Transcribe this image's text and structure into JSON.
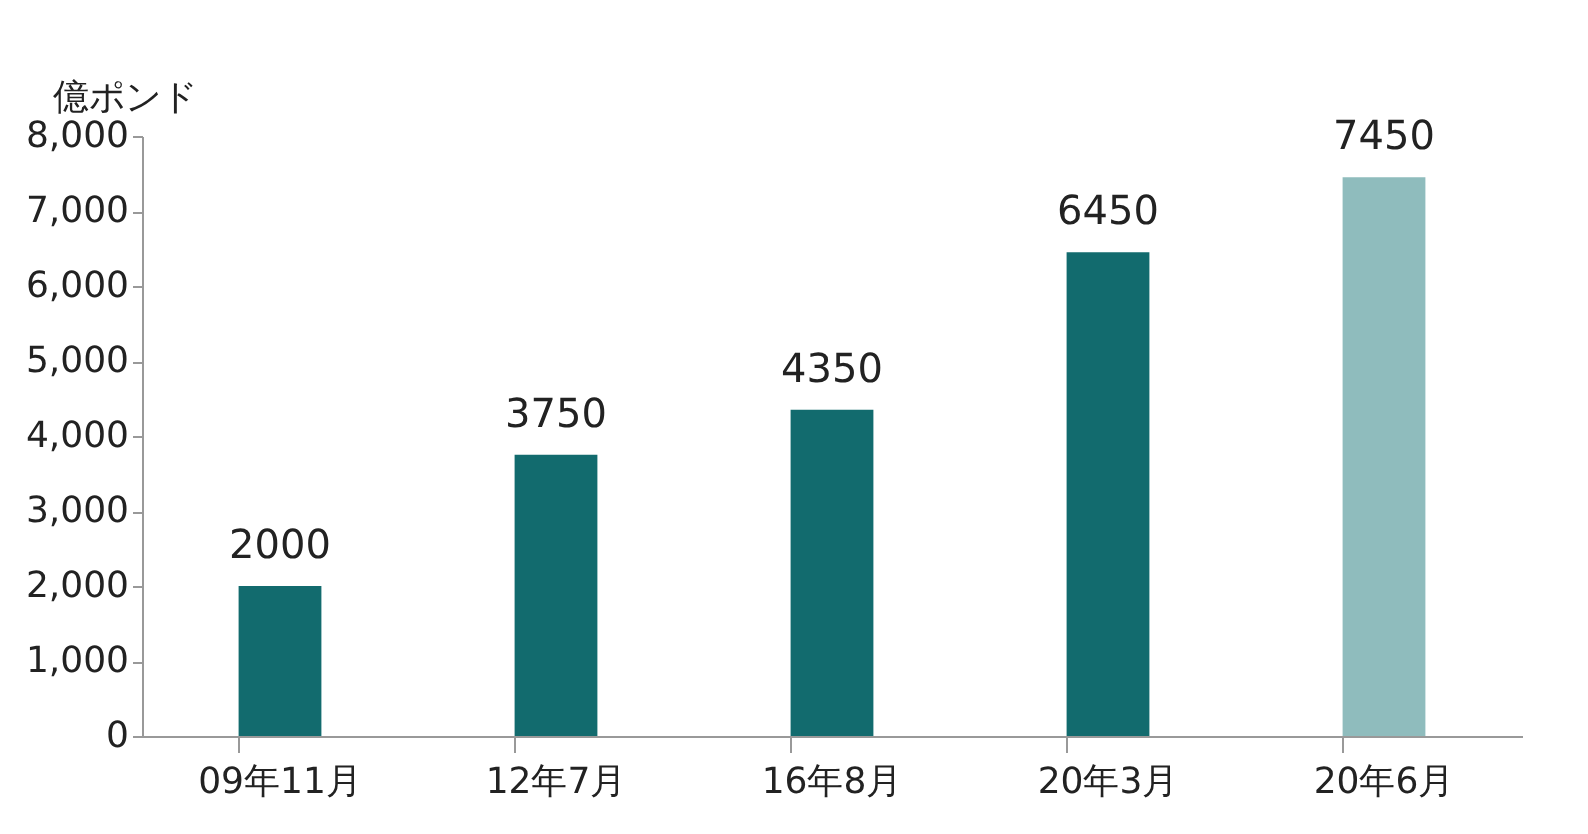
{
  "chart_data": {
    "type": "bar",
    "ylabel": "億ポンド",
    "categories": [
      "09年11月",
      "12年7月",
      "16年8月",
      "20年3月",
      "20年6月"
    ],
    "values": [
      2000,
      3750,
      4350,
      6450,
      7450
    ],
    "colors": [
      "#126b6e",
      "#126b6e",
      "#126b6e",
      "#126b6e",
      "#8fbcbd"
    ],
    "ylim": [
      0,
      8000
    ],
    "yticks": [
      {
        "value": 0,
        "label": "0"
      },
      {
        "value": 1000,
        "label": "1,000"
      },
      {
        "value": 2000,
        "label": "2,000"
      },
      {
        "value": 3000,
        "label": "3,000"
      },
      {
        "value": 4000,
        "label": "4,000"
      },
      {
        "value": 5000,
        "label": "5,000"
      },
      {
        "value": 6000,
        "label": "6,000"
      },
      {
        "value": 7000,
        "label": "7,000"
      },
      {
        "value": 8000,
        "label": "8,000"
      }
    ],
    "grid": false,
    "data_labels": true
  }
}
